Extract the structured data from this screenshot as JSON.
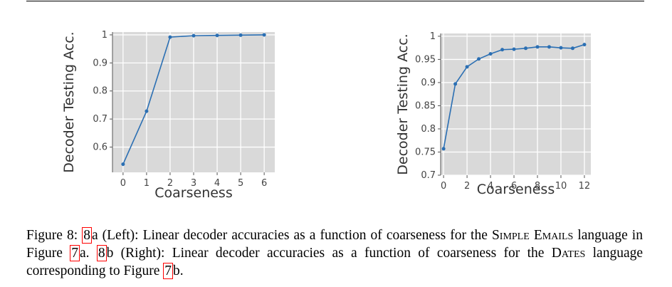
{
  "chart_data": [
    {
      "type": "line",
      "x_label": "Coarseness",
      "y_label": "Decoder Testing Acc.",
      "series": [
        {
          "color": "#2b6fb3",
          "x": [
            0,
            1,
            2,
            3,
            4,
            5,
            6
          ],
          "values": [
            0.539,
            0.728,
            0.992,
            0.997,
            0.998,
            0.999,
            1.0
          ]
        }
      ],
      "xlim": [
        -0.45,
        6.45
      ],
      "xticks": [
        0,
        1,
        2,
        3,
        4,
        5,
        6
      ],
      "ylim": [
        0.51,
        1.01
      ],
      "yticks": [
        0.6,
        0.7,
        0.8,
        0.9,
        1
      ],
      "grid": true
    },
    {
      "type": "line",
      "x_label": "Coarseness",
      "y_label": "Decoder Testing Acc.",
      "series": [
        {
          "color": "#2b6fb3",
          "x": [
            0,
            1,
            2,
            3,
            4,
            5,
            6,
            7,
            8,
            9,
            10,
            11,
            12
          ],
          "values": [
            0.757,
            0.897,
            0.934,
            0.951,
            0.962,
            0.971,
            0.972,
            0.974,
            0.977,
            0.977,
            0.975,
            0.974,
            0.982
          ]
        }
      ],
      "xlim": [
        -0.25,
        12.55
      ],
      "xticks": [
        0,
        2,
        4,
        6,
        8,
        10,
        12
      ],
      "ylim": [
        0.7,
        1.006
      ],
      "yticks": [
        0.7,
        0.75,
        0.8,
        0.85,
        0.9,
        0.95,
        1
      ],
      "grid": true
    }
  ],
  "caption": {
    "segments": [
      "Figure 8: ",
      "8",
      "a (Left): Linear decoder accuracies as a function of coarseness for the ",
      "Simple Emails",
      " language in Figure ",
      "7",
      "a. ",
      "8",
      "b (Right): Linear decoder accuracies as a function of coarseness for the ",
      "Dates",
      " language corresponding to Figure ",
      "7",
      "b."
    ]
  }
}
